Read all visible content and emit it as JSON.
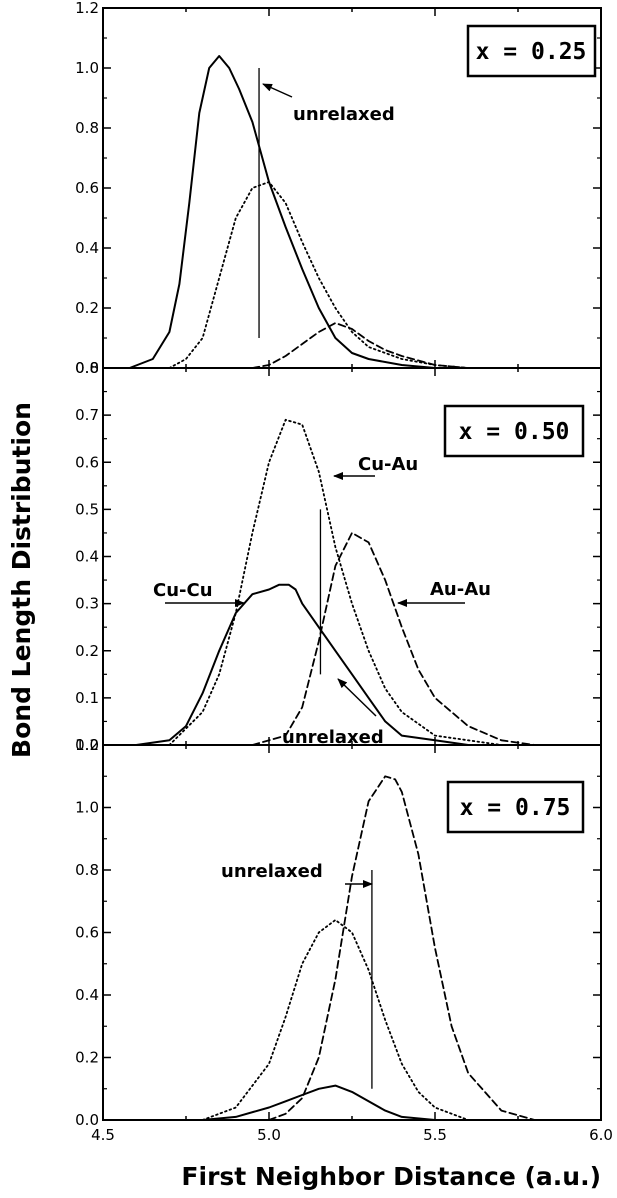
{
  "chart_data": {
    "type": "line",
    "ylabel": "Bond Length Distribution",
    "xlabel": "First Neighbor Distance (a.u.)",
    "xlim": [
      4.5,
      6.0
    ],
    "x_ticks": [
      "4.5",
      "5.0",
      "5.5",
      "6.0"
    ],
    "grid": false,
    "panels": [
      {
        "badge": "x = 0.25",
        "ylim": [
          0,
          1.2
        ],
        "y_ticks": [
          "0.0",
          "0.2",
          "0.4",
          "0.6",
          "0.8",
          "1.0",
          "1.2"
        ],
        "unrelaxed_x": 4.97,
        "unrelaxed_y": [
          0.1,
          1.0
        ],
        "annotations": [
          {
            "text": "unrelaxed"
          }
        ],
        "series": [
          {
            "style": "solid",
            "x": [
              4.58,
              4.65,
              4.7,
              4.73,
              4.76,
              4.79,
              4.82,
              4.85,
              4.88,
              4.91,
              4.95,
              5.0,
              5.05,
              5.1,
              5.15,
              5.2,
              5.25,
              5.3,
              5.4,
              5.5
            ],
            "y": [
              0.0,
              0.03,
              0.12,
              0.28,
              0.55,
              0.85,
              1.0,
              1.04,
              1.0,
              0.93,
              0.82,
              0.62,
              0.47,
              0.33,
              0.2,
              0.1,
              0.05,
              0.03,
              0.01,
              0.0
            ]
          },
          {
            "style": "dotted",
            "x": [
              4.7,
              4.75,
              4.8,
              4.85,
              4.9,
              4.95,
              5.0,
              5.05,
              5.1,
              5.15,
              5.2,
              5.25,
              5.3,
              5.4,
              5.5,
              5.6
            ],
            "y": [
              0.0,
              0.03,
              0.1,
              0.3,
              0.5,
              0.6,
              0.62,
              0.55,
              0.42,
              0.3,
              0.2,
              0.12,
              0.07,
              0.03,
              0.01,
              0.0
            ]
          },
          {
            "style": "dashed",
            "x": [
              4.95,
              5.0,
              5.05,
              5.1,
              5.15,
              5.2,
              5.25,
              5.3,
              5.35,
              5.4,
              5.5,
              5.6,
              5.7
            ],
            "y": [
              0.0,
              0.01,
              0.04,
              0.08,
              0.12,
              0.15,
              0.13,
              0.09,
              0.06,
              0.04,
              0.01,
              0.0,
              0.0
            ]
          }
        ]
      },
      {
        "badge": "x = 0.50",
        "ylim": [
          0,
          0.8
        ],
        "y_ticks": [
          "0.0",
          "0.1",
          "0.2",
          "0.3",
          "0.4",
          "0.5",
          "0.6",
          "0.7",
          "0.8"
        ],
        "unrelaxed_x": 5.155,
        "unrelaxed_y": [
          0.15,
          0.5
        ],
        "annotations": [
          {
            "text": "Cu-Au"
          },
          {
            "text": "Cu-Cu"
          },
          {
            "text": "Au-Au"
          },
          {
            "text": "unrelaxed"
          }
        ],
        "series": [
          {
            "name": "Cu-Cu",
            "style": "solid",
            "x": [
              4.6,
              4.7,
              4.75,
              4.8,
              4.85,
              4.9,
              4.95,
              5.0,
              5.03,
              5.06,
              5.08,
              5.1,
              5.13,
              5.16,
              5.2,
              5.25,
              5.3,
              5.35,
              5.4,
              5.5,
              5.6
            ],
            "y": [
              0.0,
              0.01,
              0.04,
              0.11,
              0.2,
              0.28,
              0.32,
              0.33,
              0.34,
              0.34,
              0.33,
              0.3,
              0.27,
              0.24,
              0.2,
              0.15,
              0.1,
              0.05,
              0.02,
              0.01,
              0.0
            ]
          },
          {
            "name": "Cu-Au",
            "style": "dotted",
            "x": [
              4.7,
              4.8,
              4.85,
              4.9,
              4.95,
              5.0,
              5.05,
              5.1,
              5.15,
              5.2,
              5.25,
              5.3,
              5.35,
              5.4,
              5.5,
              5.6,
              5.7,
              5.8
            ],
            "y": [
              0.0,
              0.07,
              0.15,
              0.28,
              0.45,
              0.6,
              0.69,
              0.68,
              0.58,
              0.42,
              0.3,
              0.2,
              0.12,
              0.07,
              0.02,
              0.01,
              0.0,
              0.0
            ]
          },
          {
            "name": "Au-Au",
            "style": "dashed",
            "x": [
              4.95,
              5.05,
              5.1,
              5.15,
              5.2,
              5.25,
              5.3,
              5.35,
              5.4,
              5.45,
              5.5,
              5.6,
              5.7,
              5.8,
              5.9
            ],
            "y": [
              0.0,
              0.02,
              0.08,
              0.22,
              0.38,
              0.45,
              0.43,
              0.35,
              0.25,
              0.16,
              0.1,
              0.04,
              0.01,
              0.0,
              0.0
            ]
          }
        ]
      },
      {
        "badge": "x = 0.75",
        "ylim": [
          0,
          1.2
        ],
        "y_ticks": [
          "0.0",
          "0.2",
          "0.4",
          "0.6",
          "0.8",
          "1.0",
          "1.2"
        ],
        "unrelaxed_x": 5.31,
        "unrelaxed_y": [
          0.1,
          0.8
        ],
        "annotations": [
          {
            "text": "unrelaxed"
          }
        ],
        "series": [
          {
            "style": "solid",
            "x": [
              4.8,
              4.9,
              5.0,
              5.05,
              5.1,
              5.15,
              5.2,
              5.25,
              5.3,
              5.35,
              5.4,
              5.5
            ],
            "y": [
              0.0,
              0.01,
              0.04,
              0.06,
              0.08,
              0.1,
              0.11,
              0.09,
              0.06,
              0.03,
              0.01,
              0.0
            ]
          },
          {
            "style": "dotted",
            "x": [
              4.8,
              4.9,
              5.0,
              5.05,
              5.1,
              5.15,
              5.2,
              5.25,
              5.3,
              5.35,
              5.4,
              5.45,
              5.5,
              5.6
            ],
            "y": [
              0.0,
              0.04,
              0.18,
              0.33,
              0.5,
              0.6,
              0.64,
              0.6,
              0.48,
              0.32,
              0.18,
              0.09,
              0.04,
              0.0
            ]
          },
          {
            "style": "dashed",
            "x": [
              5.0,
              5.05,
              5.1,
              5.15,
              5.2,
              5.25,
              5.3,
              5.35,
              5.38,
              5.4,
              5.45,
              5.5,
              5.55,
              5.6,
              5.7,
              5.8
            ],
            "y": [
              0.0,
              0.02,
              0.07,
              0.2,
              0.45,
              0.78,
              1.02,
              1.1,
              1.09,
              1.05,
              0.85,
              0.55,
              0.3,
              0.15,
              0.03,
              0.0
            ]
          }
        ]
      }
    ]
  }
}
